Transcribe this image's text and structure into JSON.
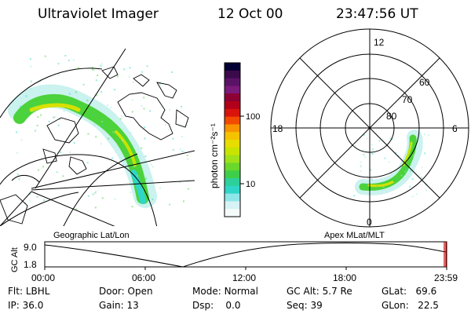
{
  "header": {
    "instrument": "Ultraviolet Imager",
    "date": "12 Oct 00",
    "time": "23:47:56 UT"
  },
  "colorbar": {
    "unit_label": "photon cm⁻²s⁻¹",
    "tick_labels": [
      "100",
      "10"
    ],
    "colors": [
      "#000033",
      "#3b0a4a",
      "#5a1266",
      "#7a1a7a",
      "#8c0033",
      "#b3001a",
      "#d9140d",
      "#f24a00",
      "#f79400",
      "#f5c200",
      "#e8dd00",
      "#c8e400",
      "#9fe21a",
      "#6ad82a",
      "#3ecf4a",
      "#2dcf9a",
      "#2fd6c8",
      "#8fe6e8",
      "#d6f3f5",
      "#f5fbfb"
    ]
  },
  "left_map": {
    "caption": "Geographic Lat/Lon"
  },
  "right_map": {
    "caption": "Apex MLat/MLT",
    "mlt_labels": [
      "12",
      "18",
      "6",
      "0"
    ],
    "lat_labels": [
      "60",
      "70",
      "80"
    ]
  },
  "altitude_plot": {
    "ylabel": "GC Alt",
    "y_ticks": [
      "9.0",
      "1.8"
    ],
    "x_ticks": [
      "00:00",
      "06:00",
      "12:00",
      "18:00",
      "23:59"
    ]
  },
  "status": {
    "row1": [
      {
        "label": "Flt:",
        "value": "LBHL"
      },
      {
        "label": "Door:",
        "value": "Open"
      },
      {
        "label": "Mode:",
        "value": "Normal"
      },
      {
        "label": "GC Alt:",
        "value": "5.7 Re"
      },
      {
        "label": "GLat:",
        "value": "69.6"
      }
    ],
    "row2": [
      {
        "label": "IP:",
        "value": "36.0"
      },
      {
        "label": "Gain:",
        "value": "13"
      },
      {
        "label": "Dsp:",
        "value": "0.0"
      },
      {
        "label": "Seq:",
        "value": "39"
      },
      {
        "label": "GLon:",
        "value": "22.5"
      }
    ]
  },
  "colors": {
    "aurora_green": "#4cd23a",
    "aurora_cyan": "#2fd6c8",
    "aurora_yellow": "#d8e000",
    "aurora_pale": "#9fe8e0",
    "marker_red": "#cc0000"
  }
}
